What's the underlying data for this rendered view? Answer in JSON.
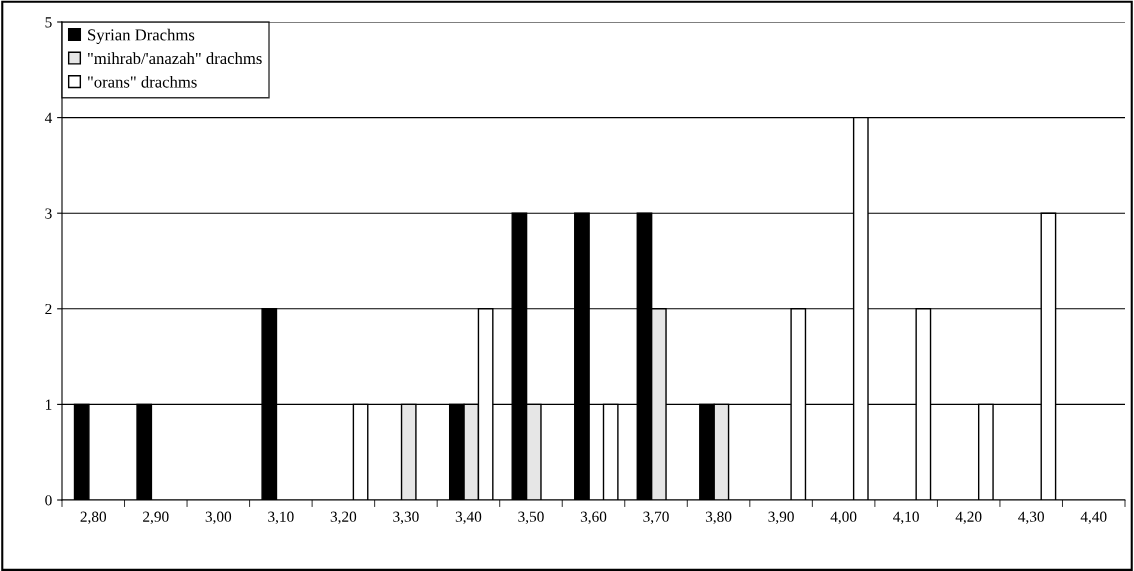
{
  "chart_data": {
    "type": "bar",
    "categories": [
      "2,80",
      "2,90",
      "3,00",
      "3,10",
      "3,20",
      "3,30",
      "3,40",
      "3,50",
      "3,60",
      "3,70",
      "3,80",
      "3,90",
      "4,00",
      "4,10",
      "4,20",
      "4,30",
      "4,40"
    ],
    "series": [
      {
        "name": "Syrian Drachms",
        "color": "#000000",
        "values": [
          1,
          1,
          null,
          2,
          null,
          null,
          1,
          3,
          3,
          3,
          1,
          null,
          null,
          null,
          null,
          null,
          null
        ]
      },
      {
        "name": "\"mihrab/'anazah\" drachms",
        "color": "#e6e6e6",
        "values": [
          null,
          null,
          null,
          null,
          null,
          1,
          1,
          1,
          null,
          2,
          1,
          null,
          null,
          null,
          null,
          null,
          null
        ]
      },
      {
        "name": "\"orans\" drachms",
        "color": "#ffffff",
        "values": [
          null,
          null,
          null,
          null,
          1,
          null,
          2,
          null,
          1,
          null,
          null,
          2,
          4,
          2,
          1,
          3,
          null
        ]
      }
    ],
    "ylim": [
      0,
      5
    ],
    "yticks": [
      0,
      1,
      2,
      3,
      4,
      5
    ],
    "grid": "y",
    "legend": "top left"
  }
}
